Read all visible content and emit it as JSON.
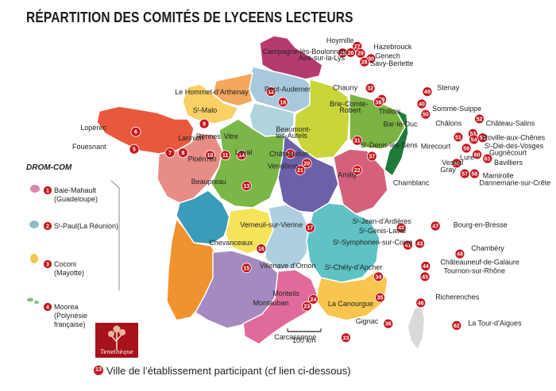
{
  "title": "RÉPARTITION DES COMITÉS DE LYCEENS LECTEURS",
  "legend": {
    "marker": "13",
    "text": "Ville de l’établissement participant (cf lien ci-dessous)"
  },
  "drom_title": "DROM-COM",
  "scale_label": "100 km",
  "logo_text": "Tenethèque",
  "colors": {
    "marker": "#c5161d",
    "label_text": "#222222"
  },
  "markers": [
    {
      "n": "27",
      "lon": 2.8,
      "lat": 50.9
    },
    {
      "n": "25",
      "lon": 2.35,
      "lat": 50.71
    },
    {
      "n": "26",
      "lon": 2.6,
      "lat": 50.72
    },
    {
      "n": "29",
      "lon": 2.9,
      "lat": 50.7
    },
    {
      "n": "30",
      "lon": 3.22,
      "lat": 50.55
    },
    {
      "n": "28",
      "lon": 3.02,
      "lat": 50.45
    },
    {
      "n": "32",
      "lon": 3.2,
      "lat": 49.7
    },
    {
      "n": "39",
      "lon": 3.55,
      "lat": 49.38
    },
    {
      "n": "38",
      "lon": 3.45,
      "lat": 49.3
    },
    {
      "n": "49",
      "lon": 4.95,
      "lat": 49.6
    },
    {
      "n": "40",
      "lon": 4.78,
      "lat": 49.25
    },
    {
      "n": "50",
      "lon": 4.9,
      "lat": 48.95
    },
    {
      "n": "52",
      "lon": 6.55,
      "lat": 48.82
    },
    {
      "n": "51",
      "lon": 5.9,
      "lat": 48.3
    },
    {
      "n": "53",
      "lon": 6.35,
      "lat": 48.4
    },
    {
      "n": "54",
      "lon": 6.38,
      "lat": 48.23
    },
    {
      "n": "55",
      "lon": 6.65,
      "lat": 48.28
    },
    {
      "n": "59",
      "lon": 6.15,
      "lat": 47.98
    },
    {
      "n": "60",
      "lon": 6.48,
      "lat": 47.8
    },
    {
      "n": "61",
      "lon": 6.8,
      "lat": 47.68
    },
    {
      "n": "56",
      "lon": 5.85,
      "lat": 47.55
    },
    {
      "n": "57",
      "lon": 6.1,
      "lat": 47.25
    },
    {
      "n": "58",
      "lon": 6.4,
      "lat": 47.25
    },
    {
      "n": "12",
      "lon": 0.15,
      "lat": 49.6
    },
    {
      "n": "18",
      "lon": 0.52,
      "lat": 49.3
    },
    {
      "n": "9",
      "lon": -1.9,
      "lat": 48.68
    },
    {
      "n": "6",
      "lon": -4.0,
      "lat": 48.45
    },
    {
      "n": "5",
      "lon": -4.05,
      "lat": 47.95
    },
    {
      "n": "7",
      "lon": -2.95,
      "lat": 47.85
    },
    {
      "n": "8",
      "lon": -2.55,
      "lat": 47.85
    },
    {
      "n": "10",
      "lon": -1.72,
      "lat": 47.78
    },
    {
      "n": "11",
      "lon": -1.25,
      "lat": 47.78
    },
    {
      "n": "14",
      "lon": -0.75,
      "lat": 47.78
    },
    {
      "n": "19",
      "lon": 0.75,
      "lat": 47.82
    },
    {
      "n": "20",
      "lon": 1.25,
      "lat": 47.55
    },
    {
      "n": "21",
      "lon": 1.05,
      "lat": 47.35
    },
    {
      "n": "31",
      "lon": 2.8,
      "lat": 48.2
    },
    {
      "n": "37",
      "lon": 3.25,
      "lat": 47.75
    },
    {
      "n": "22",
      "lon": 2.8,
      "lat": 47.35
    },
    {
      "n": "13",
      "lon": -0.6,
      "lat": 46.9
    },
    {
      "n": "17",
      "lon": 1.35,
      "lat": 45.7
    },
    {
      "n": "16",
      "lon": -0.15,
      "lat": 45.1
    },
    {
      "n": "15",
      "lon": -0.6,
      "lat": 44.55
    },
    {
      "n": "42",
      "lon": 4.15,
      "lat": 45.7
    },
    {
      "n": "41",
      "lon": 4.35,
      "lat": 45.2
    },
    {
      "n": "43",
      "lon": 4.72,
      "lat": 45.25
    },
    {
      "n": "47",
      "lon": 5.2,
      "lat": 45.75
    },
    {
      "n": "48",
      "lon": 5.95,
      "lat": 44.95
    },
    {
      "n": "44",
      "lon": 4.9,
      "lat": 44.6
    },
    {
      "n": "45",
      "lon": 4.88,
      "lat": 44.3
    },
    {
      "n": "34",
      "lon": 3.45,
      "lat": 44.3
    },
    {
      "n": "35",
      "lon": 3.5,
      "lat": 43.7
    },
    {
      "n": "24",
      "lon": 1.45,
      "lat": 43.65
    },
    {
      "n": "23",
      "lon": 1.25,
      "lat": 43.45
    },
    {
      "n": "46",
      "lon": 4.75,
      "lat": 43.55
    },
    {
      "n": "36",
      "lon": 3.75,
      "lat": 42.95
    },
    {
      "n": "33",
      "lon": 2.45,
      "lat": 42.55
    },
    {
      "n": "62",
      "lon": 5.85,
      "lat": 42.9
    }
  ],
  "labels": [
    {
      "text": "Hoymille",
      "lon": 1.85,
      "lat": 51.0
    },
    {
      "text": "Hazebrouck",
      "lon": 3.3,
      "lat": 50.82
    },
    {
      "text": "Campagne-lès-Boulonnais",
      "lon": -0.1,
      "lat": 50.68
    },
    {
      "text": "Aire-sur-la-Lys",
      "lon": 1.0,
      "lat": 50.5
    },
    {
      "text": "Genech",
      "lon": 3.35,
      "lat": 50.56
    },
    {
      "text": "Savy-Berlette",
      "lon": 3.2,
      "lat": 50.34
    },
    {
      "text": "Pont-Audemer",
      "lon": -0.05,
      "lat": 49.6
    },
    {
      "text": "Le Hommet-d’Arthenay",
      "lon": -2.8,
      "lat": 49.52
    },
    {
      "text": "Chauny",
      "lon": 2.05,
      "lat": 49.65
    },
    {
      "text": "Stenay",
      "lon": 5.25,
      "lat": 49.65
    },
    {
      "text": "Sᵗ-Malo",
      "lon": -2.25,
      "lat": 49.0
    },
    {
      "text": "Brie-Comte-",
      "lon": 1.95,
      "lat": 49.18
    },
    {
      "text": "Robert",
      "lon": 2.25,
      "lat": 49.0
    },
    {
      "text": "Thillois",
      "lon": 3.45,
      "lat": 48.97
    },
    {
      "text": "Somme-Suippe",
      "lon": 5.1,
      "lat": 49.05
    },
    {
      "text": "Lopérec",
      "lon": -5.7,
      "lat": 48.5
    },
    {
      "text": "Lannion",
      "lon": -2.7,
      "lat": 48.2
    },
    {
      "text": "Rennes",
      "lon": -2.15,
      "lat": 48.25
    },
    {
      "text": "Vitre",
      "lon": -1.3,
      "lat": 48.25
    },
    {
      "text": "Beaumont-",
      "lon": 0.3,
      "lat": 48.45
    },
    {
      "text": "les-Autels",
      "lon": 0.3,
      "lat": 48.27
    },
    {
      "text": "Bar-le-Duc",
      "lon": 3.6,
      "lat": 48.6
    },
    {
      "text": "Châlons",
      "lon": 5.2,
      "lat": 48.62
    },
    {
      "text": "Château-Salins",
      "lon": 6.75,
      "lat": 48.62
    },
    {
      "text": "Fouesnant",
      "lon": -5.95,
      "lat": 47.95
    },
    {
      "text": "Laval",
      "lon": -0.95,
      "lat": 47.8
    },
    {
      "text": "Sᵗ-Denis-lès-Sens",
      "lon": 2.9,
      "lat": 48.0
    },
    {
      "text": "Mirecourt",
      "lon": 4.75,
      "lat": 47.97
    },
    {
      "text": "Roville-aux-Chênes",
      "lon": 6.65,
      "lat": 48.22
    },
    {
      "text": "Ploërmel",
      "lon": -2.4,
      "lat": 47.6
    },
    {
      "text": "Châteaudun",
      "lon": 0.1,
      "lat": 47.75
    },
    {
      "text": "Sᵗ-Dié-des-Vosges",
      "lon": 6.7,
      "lat": 47.98
    },
    {
      "text": "Gugnécourt",
      "lon": 6.85,
      "lat": 47.78
    },
    {
      "text": "Lure",
      "lon": 5.95,
      "lat": 47.65
    },
    {
      "text": "Vendôme",
      "lon": 0.05,
      "lat": 47.4
    },
    {
      "text": "Amilly",
      "lon": 2.2,
      "lat": 47.15
    },
    {
      "text": "Vesoul",
      "lon": 5.4,
      "lat": 47.5
    },
    {
      "text": "Bavilliers",
      "lon": 7.0,
      "lat": 47.5
    },
    {
      "text": "Gray",
      "lon": 5.35,
      "lat": 47.3
    },
    {
      "text": "Beaupreau",
      "lon": -2.3,
      "lat": 46.95
    },
    {
      "text": "Chamblanc",
      "lon": 3.9,
      "lat": 46.92
    },
    {
      "text": "Mamirolle",
      "lon": 6.65,
      "lat": 47.12
    },
    {
      "text": "Dannemarie-sur-Crête",
      "lon": 6.55,
      "lat": 46.92
    },
    {
      "text": "Sᵗ-Jean-d’Ardières",
      "lon": 2.65,
      "lat": 45.82
    },
    {
      "text": "Verneuil-sur-Vienne",
      "lon": -0.8,
      "lat": 45.72
    },
    {
      "text": "Bourg-en-Bresse",
      "lon": 5.75,
      "lat": 45.72
    },
    {
      "text": "Sᵗ-Genis-Laval",
      "lon": 2.85,
      "lat": 45.55
    },
    {
      "text": "Chevanceaux",
      "lon": -1.75,
      "lat": 45.2
    },
    {
      "text": "Sᵗ-Symphorien-sur-Coise",
      "lon": 2.05,
      "lat": 45.22
    },
    {
      "text": "Chambéry",
      "lon": 6.3,
      "lat": 45.05
    },
    {
      "text": "Villenave d’Ornon",
      "lon": -0.2,
      "lat": 44.55
    },
    {
      "text": "Sᵗ-Chély-d’Apcher",
      "lon": 1.8,
      "lat": 44.5
    },
    {
      "text": "Châteauneuf-de-Galaure",
      "lon": 5.35,
      "lat": 44.65
    },
    {
      "text": "Tournon-sur-Rhône",
      "lon": 5.45,
      "lat": 44.4
    },
    {
      "text": "Monteils",
      "lon": 0.2,
      "lat": 43.75
    },
    {
      "text": "Montauban",
      "lon": -0.4,
      "lat": 43.48
    },
    {
      "text": "Richerenches",
      "lon": 5.2,
      "lat": 43.65
    },
    {
      "text": "La Canourgue",
      "lon": 1.9,
      "lat": 43.45
    },
    {
      "text": "Gignac",
      "lon": 2.75,
      "lat": 42.95
    },
    {
      "text": "La Tour-d’Aigues",
      "lon": 6.2,
      "lat": 42.9
    },
    {
      "text": "Carcassonne",
      "lon": 0.25,
      "lat": 42.5
    }
  ],
  "drom": [
    {
      "n": "1",
      "name": "Baie-Mahault",
      "sub": "(Guadeloupe)"
    },
    {
      "n": "2",
      "name": "Sᵗ-Paul(La Réunion)",
      "sub": ""
    },
    {
      "n": "3",
      "name": "Coconi",
      "sub": "(Mayotte)"
    },
    {
      "n": "4",
      "name": "Moorea",
      "sub": "(Polynésie",
      "sub2": "française)"
    }
  ]
}
